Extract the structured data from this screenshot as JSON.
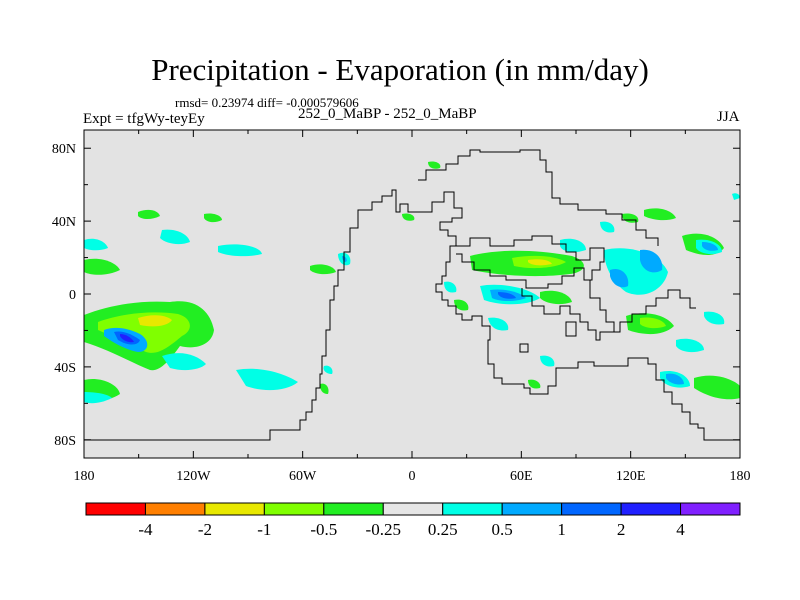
{
  "header": {
    "title": "Precipitation - Evaporation (in mm/day)",
    "stats": "rmsd= 0.23974 diff= -0.000579606",
    "expt": "Expt = tfgWy-teyEy",
    "cases": "252_0_MaBP - 252_0_MaBP",
    "season": "JJA"
  },
  "axes": {
    "x_ticks": [
      "180",
      "120W",
      "60W",
      "0",
      "60E",
      "120E",
      "180"
    ],
    "y_ticks": [
      "80N",
      "40N",
      "0",
      "40S",
      "80S"
    ],
    "lon_range": [
      -180,
      180
    ],
    "lat_range": [
      -90,
      90
    ]
  },
  "colorbar": {
    "labels": [
      "-4",
      "-2",
      "-1",
      "-0.5",
      "-0.25",
      "0.25",
      "0.5",
      "1",
      "2",
      "4"
    ],
    "colors": [
      "#ff0000",
      "#ff7f00",
      "#e8e800",
      "#80ff00",
      "#22ee22",
      "#e6e6e6",
      "#00ffe6",
      "#00aaff",
      "#0066ff",
      "#2020ff",
      "#8020ff"
    ]
  },
  "colors": {
    "land_fill": "#e3e3e3",
    "coast_line": "#000000"
  }
}
